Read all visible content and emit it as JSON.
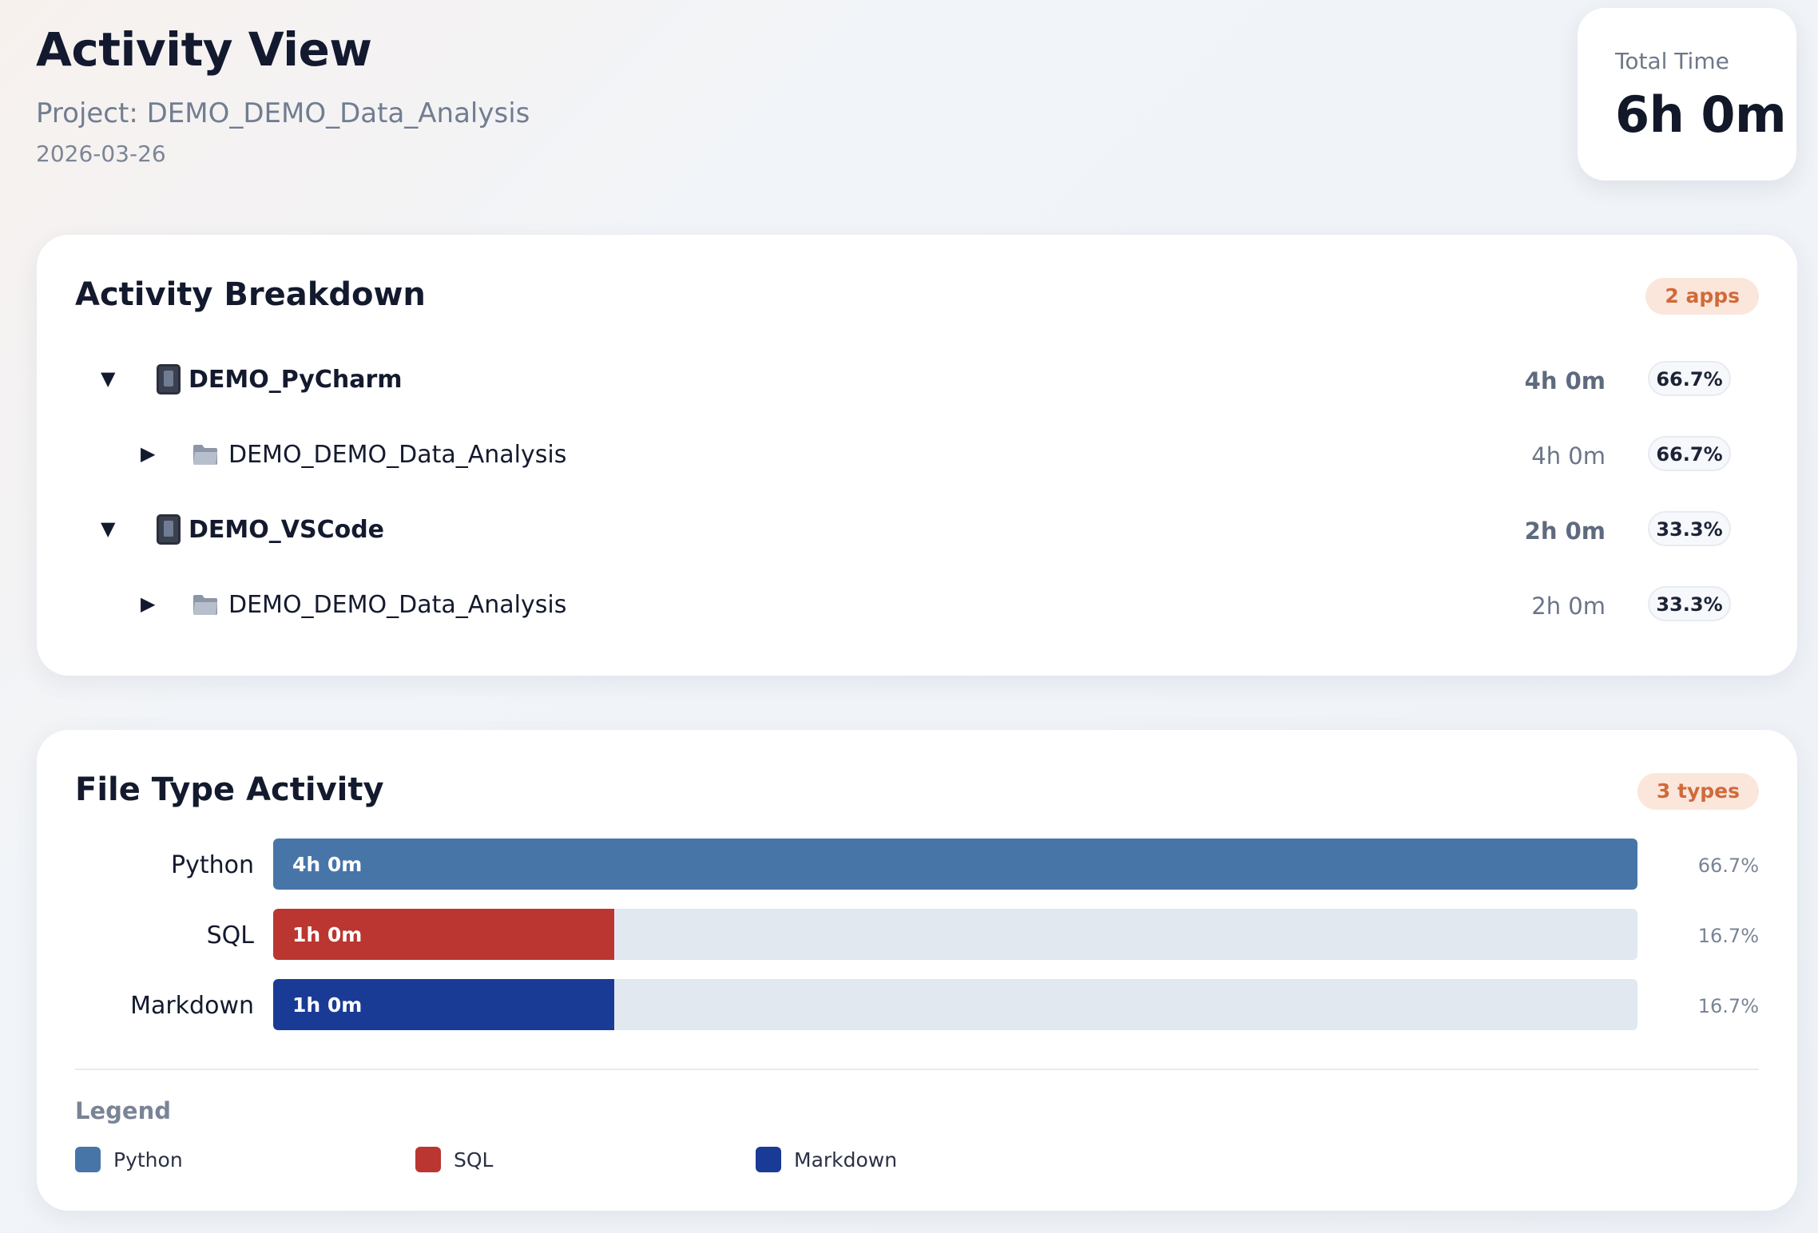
{
  "header": {
    "title": "Activity View",
    "project": "Project: DEMO_DEMO_Data_Analysis",
    "date": "2026-03-26"
  },
  "total": {
    "label": "Total Time",
    "value": "6h 0m"
  },
  "breakdown": {
    "title": "Activity Breakdown",
    "badge": "2 apps",
    "rows": [
      {
        "caret": "▼",
        "icon": "phone-icon",
        "label": "DEMO_PyCharm",
        "time": "4h 0m",
        "pct": "66.7%"
      },
      {
        "caret": "▶",
        "icon": "folder-icon",
        "label": "DEMO_DEMO_Data_Analysis",
        "time": "4h 0m",
        "pct": "66.7%"
      },
      {
        "caret": "▼",
        "icon": "phone-icon",
        "label": "DEMO_VSCode",
        "time": "2h 0m",
        "pct": "33.3%"
      },
      {
        "caret": "▶",
        "icon": "folder-icon",
        "label": "DEMO_DEMO_Data_Analysis",
        "time": "2h 0m",
        "pct": "33.3%"
      }
    ]
  },
  "filetypes": {
    "title": "File Type Activity",
    "badge": "3 types",
    "bars": [
      {
        "label": "Python",
        "time": "4h 0m",
        "pct": "66.7%",
        "fraction": 1.0,
        "color": "#4775a8"
      },
      {
        "label": "SQL",
        "time": "1h 0m",
        "pct": "16.7%",
        "fraction": 0.25,
        "color": "#bb3630"
      },
      {
        "label": "Markdown",
        "time": "1h 0m",
        "pct": "16.7%",
        "fraction": 0.25,
        "color": "#1a3b95"
      }
    ],
    "legend_title": "Legend",
    "legend": [
      {
        "label": "Python",
        "color": "#4775a8"
      },
      {
        "label": "SQL",
        "color": "#bb3630"
      },
      {
        "label": "Markdown",
        "color": "#1a3b95"
      }
    ]
  }
}
